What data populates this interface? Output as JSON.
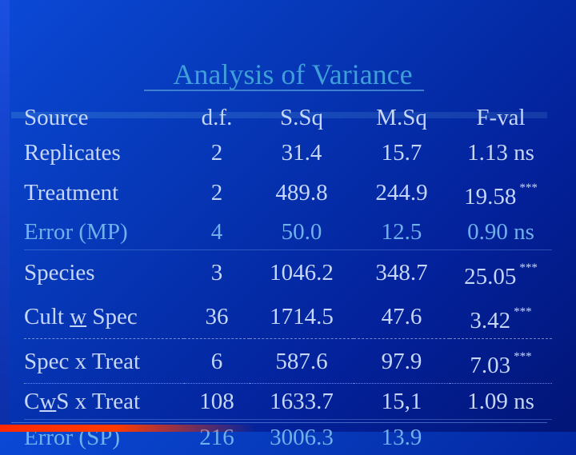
{
  "title": "Analysis of Variance",
  "colors": {
    "title": "#3f9fd8",
    "text": "#c6d6f6",
    "error_rows": "#6fb0ea",
    "accent_bar": "#ff2a00"
  },
  "table": {
    "headers": {
      "source": "Source",
      "df": "d.f.",
      "ss": "S.Sq",
      "ms": "M.Sq",
      "f": "F-val"
    },
    "rows": [
      {
        "src_a": "Replicates",
        "src_u": "",
        "src_b": "",
        "df": "2",
        "ss": "31.4",
        "ms": "15.7",
        "f": "1.13 ns",
        "sig": ""
      },
      {
        "src_a": "Treatment",
        "src_u": "",
        "src_b": "",
        "df": "2",
        "ss": "489.8",
        "ms": "244.9",
        "f": "19.58",
        "sig": "***"
      },
      {
        "src_a": "Error (MP)",
        "src_u": "",
        "src_b": "",
        "df": "4",
        "ss": "50.0",
        "ms": "12.5",
        "f": "0.90 ns",
        "sig": ""
      },
      {
        "src_a": "Species",
        "src_u": "",
        "src_b": "",
        "df": "3",
        "ss": "1046.2",
        "ms": "348.7",
        "f": "25.05",
        "sig": "***"
      },
      {
        "src_a": "Cult ",
        "src_u": "w",
        "src_b": " Spec",
        "df": "36",
        "ss": "1714.5",
        "ms": "47.6",
        "f": "3.42",
        "sig": "***"
      },
      {
        "src_a": "Spec x Treat",
        "src_u": "",
        "src_b": "",
        "df": "6",
        "ss": "587.6",
        "ms": "97.9",
        "f": "7.03",
        "sig": "***"
      },
      {
        "src_a": "C",
        "src_u": "w",
        "src_b": "S x Treat",
        "df": "108",
        "ss": "1633.7",
        "ms": "15,1",
        "f": "1.09 ns",
        "sig": ""
      },
      {
        "src_a": "Error (SP)",
        "src_u": "",
        "src_b": "",
        "df": "216",
        "ss": "3006.3",
        "ms": "13.9",
        "f": "",
        "sig": ""
      }
    ]
  }
}
